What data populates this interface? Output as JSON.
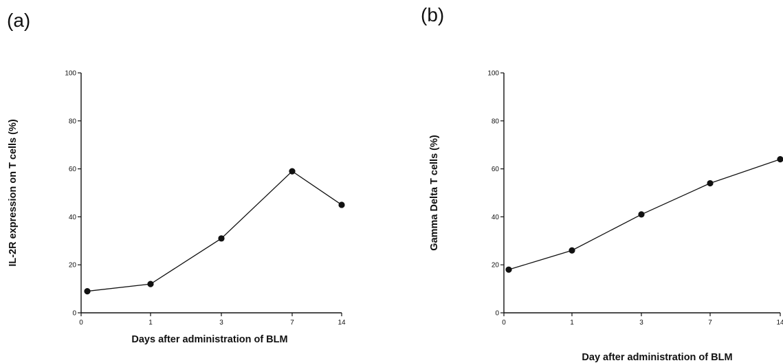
{
  "panels": {
    "a": "(a)",
    "b": "(b)"
  },
  "chart_data": [
    {
      "type": "line",
      "panel": "(a)",
      "categories": [
        "0",
        "1",
        "3",
        "7",
        "14"
      ],
      "x_tick_labels": [
        "0",
        "1",
        "3",
        "7",
        "14"
      ],
      "y_ticks": [
        0,
        20,
        40,
        60,
        80,
        100
      ],
      "ylim": [
        0,
        100
      ],
      "xlabel": "Days after administration of BLM",
      "ylabel": "IL-2R expression on T cells (%)",
      "grid": false,
      "series": [
        {
          "values": [
            9,
            12,
            31,
            59,
            45
          ]
        }
      ]
    },
    {
      "type": "line",
      "panel": "(b)",
      "categories": [
        "0",
        "1",
        "3",
        "7",
        "14"
      ],
      "x_tick_labels": [
        "0",
        "1",
        "3",
        "7",
        "14"
      ],
      "y_ticks": [
        0,
        20,
        40,
        60,
        80,
        100
      ],
      "ylim": [
        0,
        100
      ],
      "xlabel": "Day after administration of BLM",
      "ylabel": "Gamma Delta T cells (%)",
      "grid": false,
      "series": [
        {
          "values": [
            18,
            26,
            41,
            54,
            64
          ]
        }
      ]
    }
  ]
}
